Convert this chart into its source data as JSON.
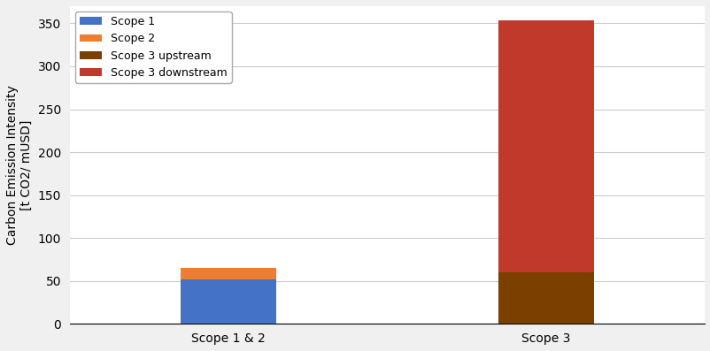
{
  "categories": [
    "Scope 1 & 2",
    "Scope 3"
  ],
  "scope1": [
    52,
    0
  ],
  "scope2": [
    13,
    0
  ],
  "scope3_upstream": [
    0,
    60
  ],
  "scope3_downstream": [
    0,
    293
  ],
  "colors": {
    "scope1": "#4472c4",
    "scope2": "#ed7d31",
    "scope3_upstream": "#7b3f00",
    "scope3_downstream": "#c0392b"
  },
  "legend_labels": [
    "Scope 1",
    "Scope 2",
    "Scope 3 upstream",
    "Scope 3 downstream"
  ],
  "ylabel_line1": "Carbon Emission Intensity",
  "ylabel_line2": "[t CO2/ mUSD]",
  "ylim": [
    0,
    370
  ],
  "yticks": [
    0,
    50,
    100,
    150,
    200,
    250,
    300,
    350
  ],
  "bar_width": 0.15,
  "x_positions": [
    0.25,
    0.75
  ],
  "xlim": [
    0,
    1
  ],
  "background_color": "#f0f0f0",
  "plot_bg_color": "#ffffff",
  "grid_color": "#cccccc"
}
